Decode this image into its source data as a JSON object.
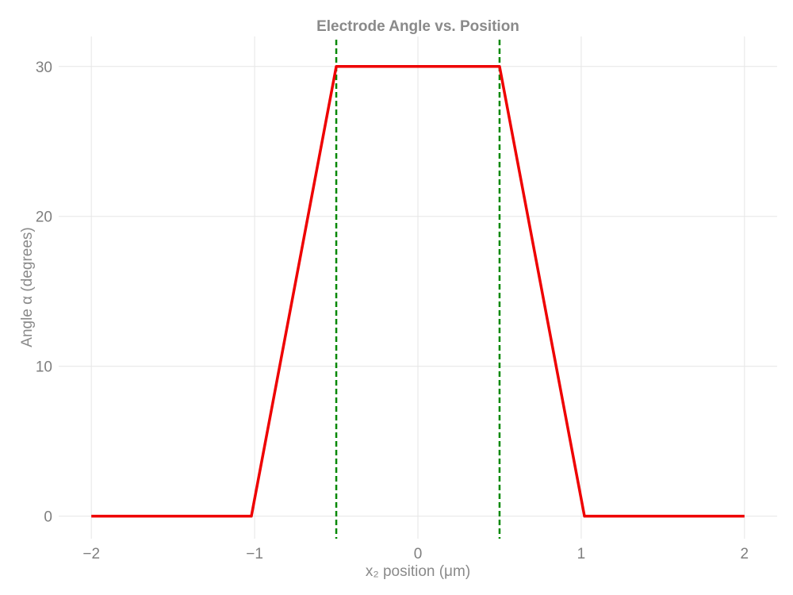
{
  "chart_data": {
    "type": "line",
    "title": "Electrode Angle vs. Position",
    "xlabel": "x₂ position (μm)",
    "ylabel": "Angle α (degrees)",
    "xlim": [
      -2.2,
      2.2
    ],
    "ylim": [
      -1.5,
      32
    ],
    "x_ticks": [
      -2,
      -1,
      0,
      1,
      2
    ],
    "x_tick_labels": [
      "−2",
      "−1",
      "0",
      "1",
      "2"
    ],
    "y_ticks": [
      0,
      10,
      20,
      30
    ],
    "y_tick_labels": [
      "0",
      "10",
      "20",
      "30"
    ],
    "grid": true,
    "legend": "none",
    "series": [
      {
        "color": "#ee0000",
        "style": "solid",
        "x": [
          -2,
          -1.02,
          -0.5,
          0.5,
          1.02,
          2
        ],
        "y": [
          0,
          0,
          30,
          30,
          0,
          0
        ]
      }
    ],
    "vertical_lines": [
      {
        "x": -0.5,
        "color": "#008800",
        "style": "dashed"
      },
      {
        "x": 0.5,
        "color": "#008800",
        "style": "dashed"
      }
    ]
  }
}
